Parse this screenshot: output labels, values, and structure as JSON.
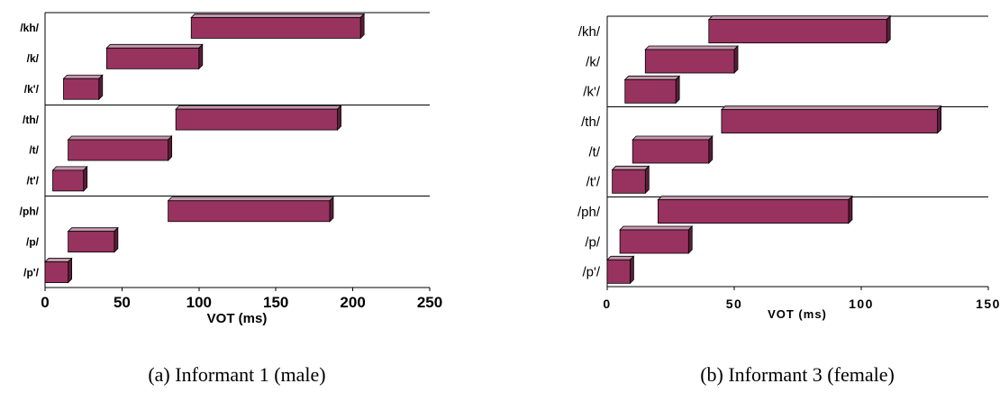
{
  "colors": {
    "bar_front": "#98335f",
    "bar_top": "#c497ad",
    "bar_side": "#5b1d38",
    "bar_edge": "#000000"
  },
  "chart_data": [
    {
      "type": "bar",
      "orientation": "horizontal",
      "style": "3d-floating-range",
      "caption": "(a) Informant 1 (male)",
      "xlabel": "VOT (ms)",
      "ylabel": "",
      "xlim": [
        0,
        250
      ],
      "xticks": [
        "0",
        "50",
        "100",
        "150",
        "200",
        "250"
      ],
      "categories": [
        "/kh/",
        "/k/",
        "/k'/",
        "/th/",
        "/t/",
        "/t'/",
        "/ph/",
        "/p/",
        "/p'/"
      ],
      "group_separators_after": [
        "/k'/",
        "/t'/"
      ],
      "series": [
        {
          "ranges": [
            [
              95,
              205
            ],
            [
              40,
              100
            ],
            [
              12,
              35
            ],
            [
              85,
              190
            ],
            [
              15,
              80
            ],
            [
              5,
              25
            ],
            [
              80,
              185
            ],
            [
              15,
              45
            ],
            [
              0,
              15
            ]
          ]
        }
      ],
      "grid": false,
      "legend": "none"
    },
    {
      "type": "bar",
      "orientation": "horizontal",
      "style": "3d-floating-range",
      "caption": "(b) Informant 3 (female)",
      "xlabel": "VOT (ms)",
      "ylabel": "",
      "xlim": [
        0,
        150
      ],
      "xticks": [
        "0",
        "50",
        "100",
        "150"
      ],
      "categories": [
        "/kh/",
        "/k/",
        "/k'/",
        "/th/",
        "/t/",
        "/t'/",
        "/ph/",
        "/p/",
        "/p'/"
      ],
      "group_separators_after": [
        "/k'/",
        "/t'/"
      ],
      "series": [
        {
          "ranges": [
            [
              40,
              110
            ],
            [
              15,
              50
            ],
            [
              7,
              27
            ],
            [
              45,
              130
            ],
            [
              10,
              40
            ],
            [
              2,
              15
            ],
            [
              20,
              95
            ],
            [
              5,
              32
            ],
            [
              0,
              9
            ]
          ]
        }
      ],
      "grid": false,
      "legend": "none"
    }
  ]
}
